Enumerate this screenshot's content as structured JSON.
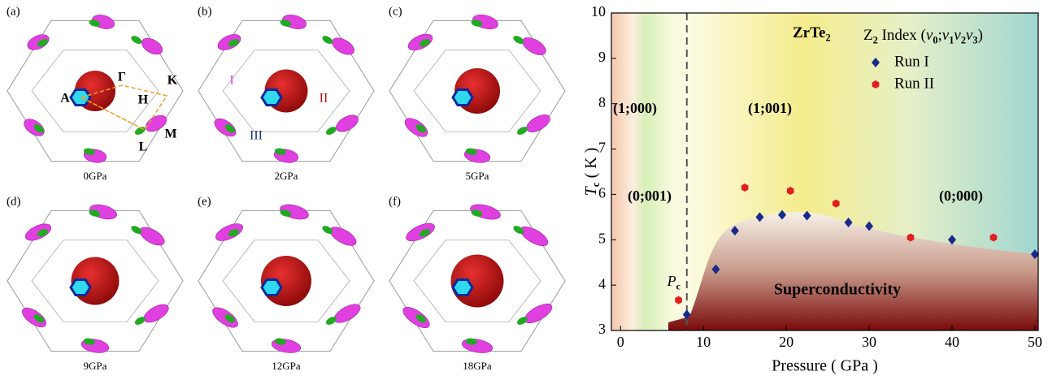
{
  "panels": [
    {
      "label": "(a)",
      "pressure": "0GPa"
    },
    {
      "label": "(b)",
      "pressure": "2GPa"
    },
    {
      "label": "(c)",
      "pressure": "5GPa"
    },
    {
      "label": "(d)",
      "pressure": "9GPa"
    },
    {
      "label": "(e)",
      "pressure": "12GPa"
    },
    {
      "label": "(f)",
      "pressure": "18GPa"
    }
  ],
  "panel_a_points": [
    "Γ",
    "A",
    "H",
    "K",
    "M",
    "L"
  ],
  "panel_b_pockets": [
    "I",
    "II",
    "III"
  ],
  "chart_data": {
    "type": "scatter",
    "compound": [
      [
        "ZrTe",
        "b"
      ],
      [
        "2",
        "bsub"
      ]
    ],
    "legend_title": [
      [
        "Z",
        ""
      ],
      [
        "2",
        "sub"
      ],
      [
        " Index (",
        ""
      ],
      [
        "v",
        "i"
      ],
      [
        "0",
        "sub"
      ],
      [
        ";",
        ""
      ],
      [
        "v",
        "i"
      ],
      [
        "1",
        "sub"
      ],
      [
        "v",
        "i"
      ],
      [
        "2",
        "sub"
      ],
      [
        "v",
        "i"
      ],
      [
        "3",
        "sub"
      ],
      [
        ")",
        ""
      ]
    ],
    "phases": [
      "(1;000)",
      "(0;001)",
      "(1;001)",
      "(0;000)"
    ],
    "region_label": "Superconductivity",
    "pc_label": [
      [
        "P",
        "i"
      ],
      [
        "c",
        "sub"
      ]
    ],
    "pc": 8,
    "xlabel": "Pressure ( GPa )",
    "ylabel": [
      [
        "T",
        "i"
      ],
      [
        "c",
        "sub"
      ],
      [
        " ( K )",
        ""
      ]
    ],
    "xlim": [
      -1.1,
      50.4
    ],
    "xticks": [
      0,
      10,
      20,
      30,
      40,
      50
    ],
    "ylim": [
      3,
      10
    ],
    "yticks": [
      3,
      4,
      5,
      6,
      7,
      8,
      9,
      10
    ],
    "series": [
      {
        "name": "Run I",
        "color": "#1a2a8a",
        "marker": "diamond",
        "x": [
          8,
          11.5,
          13.8,
          16.8,
          19.5,
          22.5,
          27.5,
          30,
          40,
          50
        ],
        "values": [
          3.35,
          4.35,
          5.2,
          5.5,
          5.55,
          5.53,
          5.38,
          5.3,
          5.0,
          4.68
        ]
      },
      {
        "name": "Run II",
        "color": "#e02020",
        "marker": "hexagon",
        "x": [
          7,
          15,
          20.5,
          26,
          35,
          45
        ],
        "values": [
          3.67,
          6.15,
          6.08,
          5.8,
          5.05,
          5.05
        ]
      }
    ]
  }
}
